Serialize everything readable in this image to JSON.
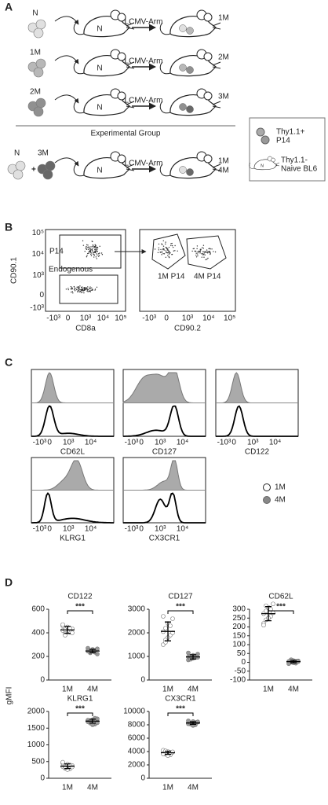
{
  "panel_labels": [
    "A",
    "B",
    "C",
    "D"
  ],
  "panel_a": {
    "rows": [
      {
        "donor": "N",
        "output": "1M"
      },
      {
        "donor": "1M",
        "output": "2M"
      },
      {
        "donor": "2M",
        "output": "3M"
      }
    ],
    "treatment": "LCMV-Arm",
    "host": "N",
    "group_title": "Experimental Group",
    "experimental": {
      "donors": [
        "N",
        "3M"
      ],
      "plus": "+",
      "outputs": [
        "1M",
        "4M"
      ]
    },
    "legend": [
      [
        "Thy1.1+",
        "P14"
      ],
      [
        "Thy1.1-",
        "Naive BL6"
      ]
    ]
  },
  "panel_b": {
    "plots": [
      {
        "ylabel": "CD90.1",
        "xlabel": "CD8a",
        "gates": [
          "P14",
          "Endogenous"
        ]
      },
      {
        "xlabel": "CD90.2",
        "gates": [
          "1M P14",
          "4M P14"
        ]
      }
    ],
    "xticks": [
      "-10³",
      "0",
      "10³",
      "10⁴",
      "10⁵"
    ],
    "yticks": [
      "10⁵",
      "10⁴",
      "10³",
      "0",
      "-10³"
    ]
  },
  "panel_c": {
    "markers": [
      "CD62L",
      "CD127",
      "CD122",
      "KLRG1",
      "CX3CR1"
    ],
    "xticks": [
      "-10³",
      "0",
      "10³",
      "10⁴"
    ],
    "legend": [
      "1M",
      "4M"
    ]
  },
  "panel_d": {
    "ylabel": "gMFI"
  },
  "chart_data": [
    {
      "type": "scatter",
      "title": "CD122",
      "categories": [
        "1M",
        "4M"
      ],
      "significance": "***",
      "colors": [
        "#ffffff",
        "#999999"
      ],
      "values": [
        [
          420,
          390,
          450,
          405,
          435,
          460,
          380,
          415,
          440,
          400,
          470,
          425
        ],
        [
          245,
          230,
          260,
          250,
          220,
          270,
          240,
          255,
          235,
          265,
          248,
          238
        ]
      ],
      "summary": [
        {
          "mean": 425,
          "sd": 30
        },
        {
          "mean": 246,
          "sd": 14
        }
      ],
      "ylim": [
        0,
        600
      ],
      "yticks": [
        0,
        200,
        400,
        600
      ]
    },
    {
      "type": "scatter",
      "title": "CD127",
      "categories": [
        "1M",
        "4M"
      ],
      "significance": "***",
      "colors": [
        "#ffffff",
        "#999999"
      ],
      "values": [
        [
          2050,
          1700,
          2400,
          1900,
          2600,
          1500,
          2200,
          1800,
          2300,
          2000,
          2700,
          1600
        ],
        [
          980,
          900,
          1050,
          950,
          1100,
          850,
          1000,
          920,
          1020,
          960,
          1150,
          880
        ]
      ],
      "summary": [
        {
          "mean": 2060,
          "sd": 400
        },
        {
          "mean": 980,
          "sd": 90
        }
      ],
      "ylim": [
        0,
        3000
      ],
      "yticks": [
        0,
        1000,
        2000,
        3000
      ]
    },
    {
      "type": "scatter",
      "title": "CD62L",
      "categories": [
        "1M",
        "4M"
      ],
      "significance": "***",
      "colors": [
        "#ffffff",
        "#999999"
      ],
      "values": [
        [
          275,
          240,
          310,
          260,
          330,
          220,
          290,
          250,
          300,
          280,
          210,
          320
        ],
        [
          5,
          0,
          10,
          -5,
          8,
          2,
          12,
          -3,
          6,
          4,
          -8,
          15
        ]
      ],
      "summary": [
        {
          "mean": 275,
          "sd": 40
        },
        {
          "mean": 4,
          "sd": 7
        }
      ],
      "ylim": [
        -100,
        300
      ],
      "yticks": [
        -100,
        -50,
        0,
        50,
        100,
        150,
        200,
        250,
        300
      ]
    },
    {
      "type": "scatter",
      "title": "KLRG1",
      "categories": [
        "1M",
        "4M"
      ],
      "significance": "***",
      "colors": [
        "#ffffff",
        "#999999"
      ],
      "values": [
        [
          350,
          300,
          420,
          280,
          380,
          450,
          320,
          260,
          400,
          340,
          480,
          310
        ],
        [
          1700,
          1650,
          1750,
          1620,
          1780,
          1690,
          1720,
          1600,
          1800,
          1660,
          1740,
          1710
        ]
      ],
      "summary": [
        {
          "mean": 360,
          "sd": 70
        },
        {
          "mean": 1710,
          "sd": 60
        }
      ],
      "ylim": [
        0,
        2000
      ],
      "yticks": [
        0,
        500,
        1000,
        1500,
        2000
      ]
    },
    {
      "type": "scatter",
      "title": "CX3CR1",
      "categories": [
        "1M",
        "4M"
      ],
      "significance": "***",
      "colors": [
        "#ffffff",
        "#999999"
      ],
      "values": [
        [
          3800,
          3600,
          4000,
          3500,
          3900,
          4200,
          3700,
          3400,
          3850,
          3950,
          3650,
          4100
        ],
        [
          8300,
          8100,
          8500,
          8000,
          8400,
          8600,
          8200,
          7900,
          8350,
          8450,
          8150,
          8250
        ]
      ],
      "summary": [
        {
          "mean": 3820,
          "sd": 240
        },
        {
          "mean": 8270,
          "sd": 200
        }
      ],
      "ylim": [
        0,
        10000
      ],
      "yticks": [
        0,
        2000,
        4000,
        6000,
        8000,
        10000
      ]
    }
  ]
}
